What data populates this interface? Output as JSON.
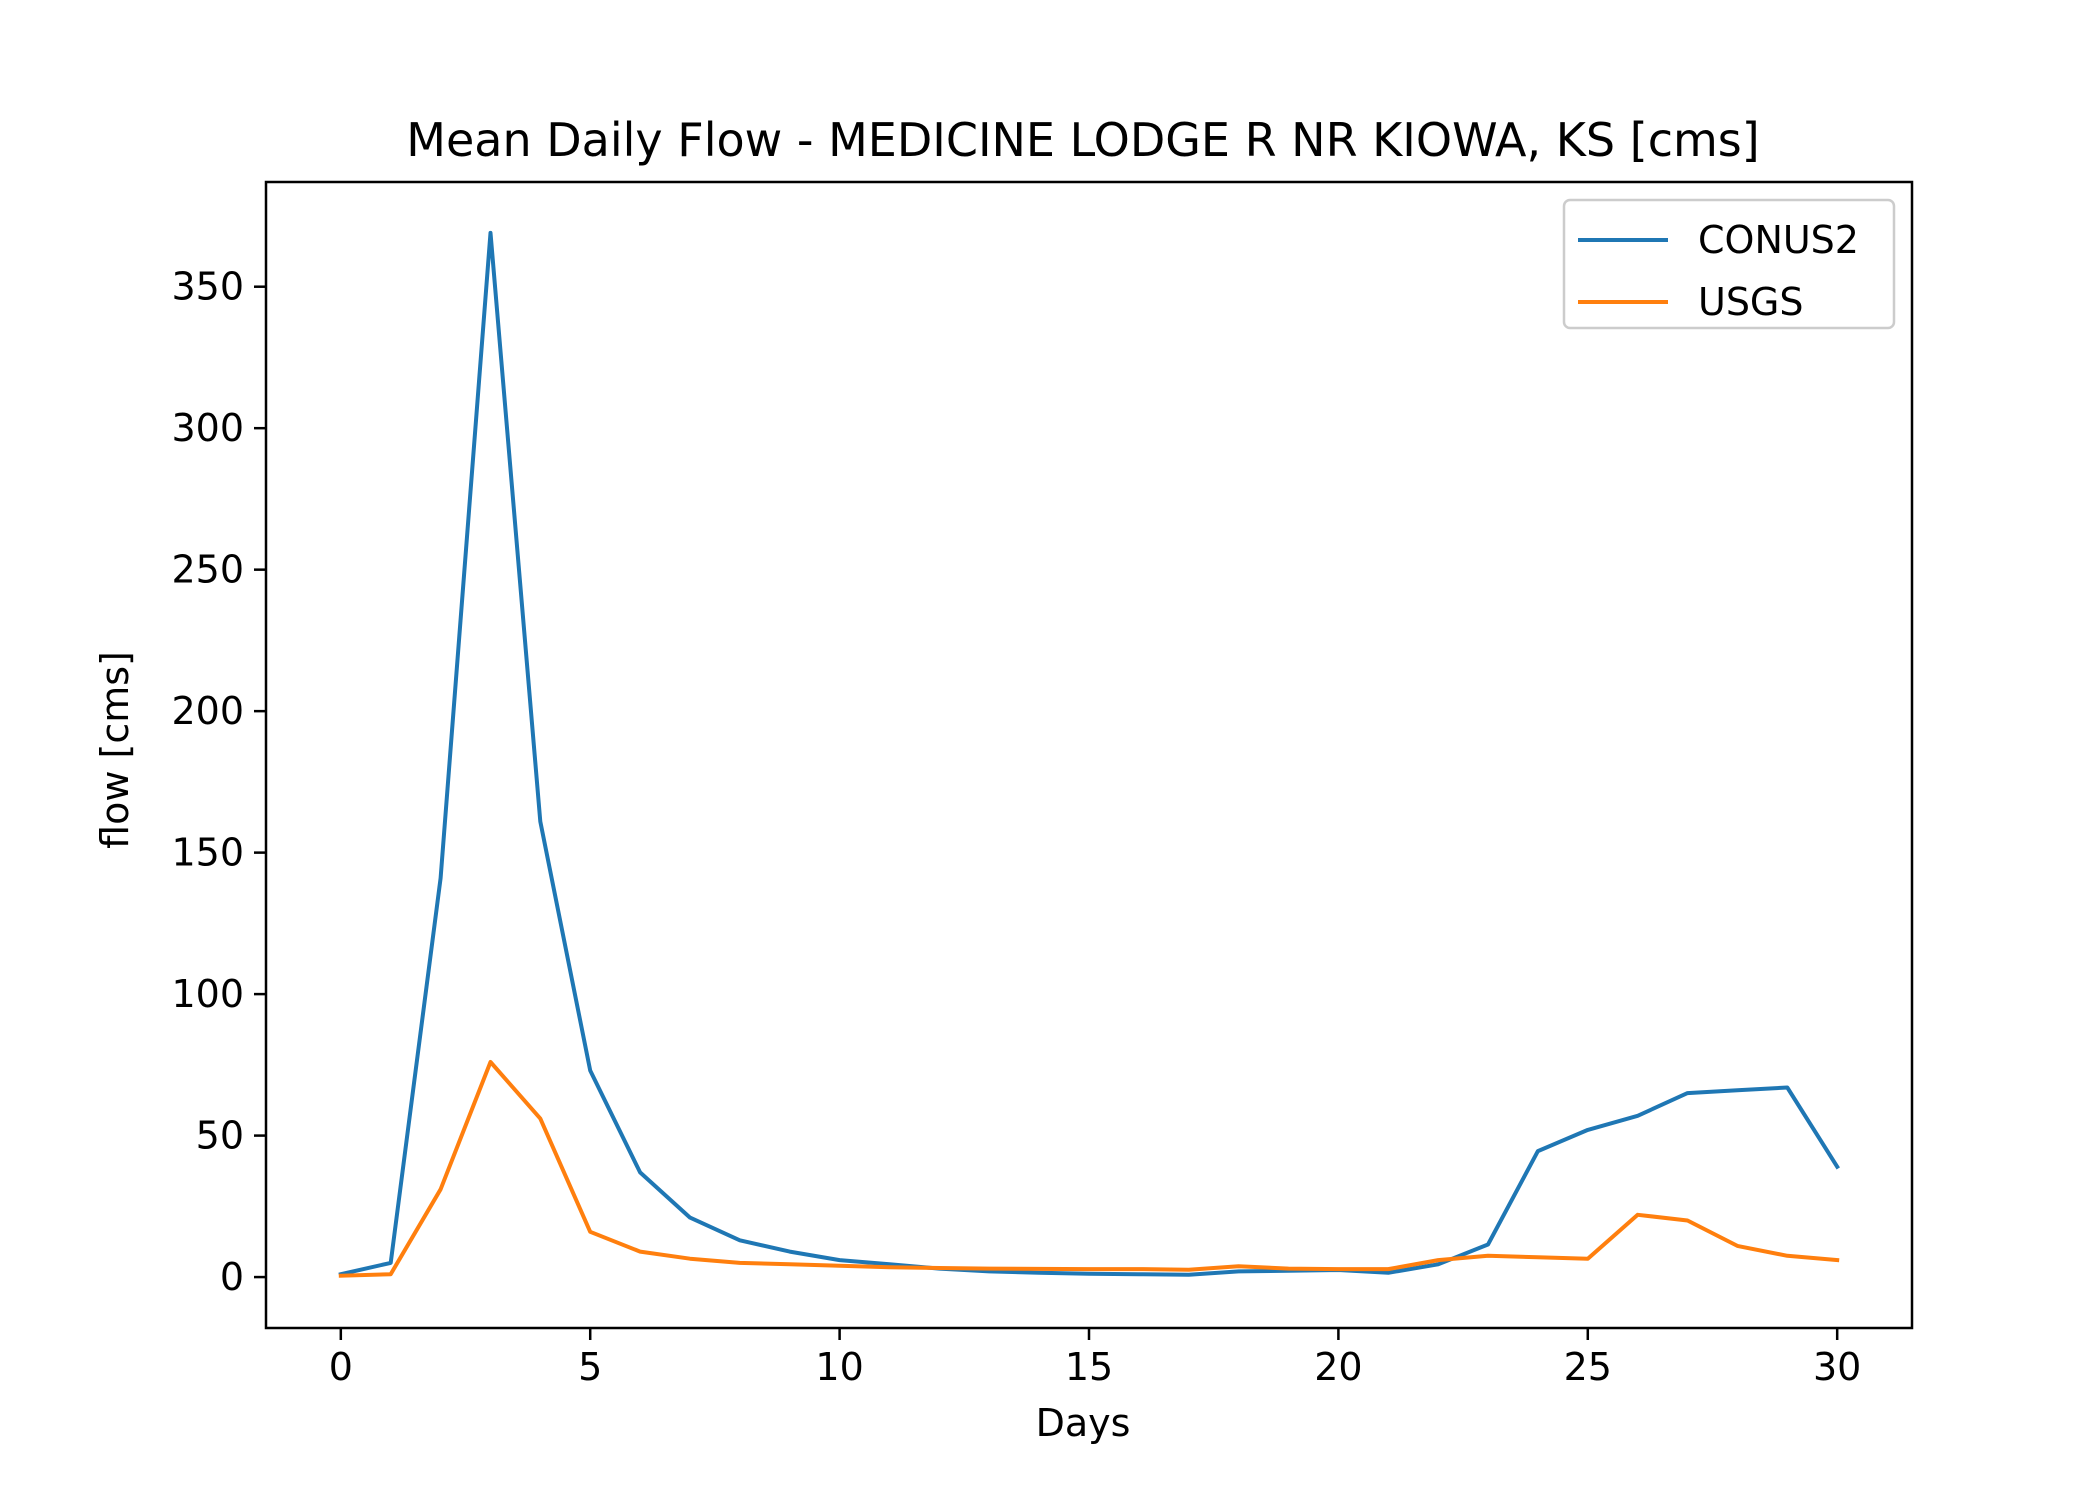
{
  "chart_data": {
    "type": "line",
    "title": "Mean Daily Flow - MEDICINE LODGE R NR KIOWA, KS [cms]",
    "xlabel": "Days",
    "ylabel": "flow [cms]",
    "xlim": [
      -1.5,
      31.5
    ],
    "ylim": [
      -18,
      387
    ],
    "xticks": [
      0,
      5,
      10,
      15,
      20,
      25,
      30
    ],
    "yticks": [
      0,
      50,
      100,
      150,
      200,
      250,
      300,
      350
    ],
    "grid": false,
    "legend_position": "upper right",
    "x": [
      0,
      1,
      2,
      3,
      4,
      5,
      6,
      7,
      8,
      9,
      10,
      11,
      12,
      13,
      14,
      15,
      16,
      17,
      18,
      19,
      20,
      21,
      22,
      23,
      24,
      25,
      26,
      27,
      28,
      29,
      30
    ],
    "series": [
      {
        "name": "CONUS2",
        "color": "#1f77b4",
        "values": [
          1,
          5,
          141,
          369,
          161,
          73,
          37,
          21,
          13,
          9,
          6,
          4.5,
          3,
          2,
          1.5,
          1.2,
          1,
          0.8,
          2,
          2.2,
          2.5,
          1.5,
          4.5,
          11.5,
          44.5,
          52,
          57,
          65,
          66,
          67,
          39
        ]
      },
      {
        "name": "USGS",
        "color": "#ff7f0e",
        "values": [
          0.5,
          1,
          31,
          76,
          56,
          16,
          9,
          6.5,
          5,
          4.5,
          4,
          3.5,
          3.2,
          3,
          2.9,
          2.8,
          2.8,
          2.6,
          3.8,
          3,
          2.8,
          2.8,
          6,
          7.5,
          7,
          6.5,
          22,
          20,
          11,
          7.5,
          6
        ]
      }
    ]
  }
}
